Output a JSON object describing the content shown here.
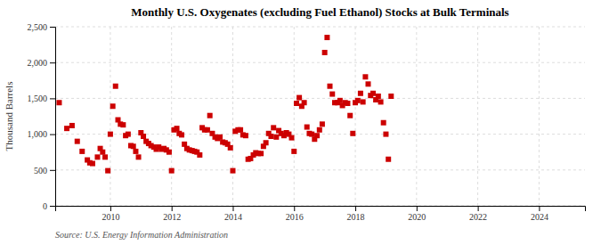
{
  "chart_data": {
    "type": "scatter",
    "title": "Monthly U.S. Oxygenates (excluding Fuel Ethanol) Stocks at Bulk Terminals",
    "ylabel": "Thousand Barrels",
    "source": "Source: U.S. Energy Information Administration",
    "color": "#cc0000",
    "marker": "square",
    "grid": true,
    "xlim": [
      2008.2,
      2025.5
    ],
    "ylim": [
      0,
      2500
    ],
    "xticks": [
      2010,
      2012,
      2014,
      2016,
      2018,
      2020,
      2022,
      2024
    ],
    "yticks": [
      0,
      500,
      {
        "value": 1000,
        "label": "1,000"
      },
      {
        "value": 1500,
        "label": "1,500"
      },
      {
        "value": 2000,
        "label": "2,000"
      },
      {
        "value": 2500,
        "label": "2,500"
      }
    ],
    "x": [
      2008.33,
      2008.58,
      2008.75,
      2008.92,
      2009.08,
      2009.25,
      2009.33,
      2009.42,
      2009.58,
      2009.67,
      2009.75,
      2009.83,
      2009.92,
      2010.0,
      2010.08,
      2010.17,
      2010.25,
      2010.33,
      2010.42,
      2010.5,
      2010.58,
      2010.67,
      2010.75,
      2010.83,
      2010.92,
      2011.0,
      2011.08,
      2011.17,
      2011.25,
      2011.33,
      2011.42,
      2011.5,
      2011.58,
      2011.67,
      2011.75,
      2011.83,
      2011.92,
      2012.0,
      2012.08,
      2012.17,
      2012.25,
      2012.33,
      2012.42,
      2012.5,
      2012.58,
      2012.67,
      2012.75,
      2012.83,
      2012.92,
      2013.0,
      2013.08,
      2013.17,
      2013.25,
      2013.33,
      2013.42,
      2013.5,
      2013.58,
      2013.67,
      2013.75,
      2013.83,
      2013.92,
      2014.0,
      2014.08,
      2014.17,
      2014.25,
      2014.33,
      2014.42,
      2014.5,
      2014.58,
      2014.67,
      2014.75,
      2014.83,
      2014.92,
      2015.0,
      2015.08,
      2015.17,
      2015.25,
      2015.33,
      2015.42,
      2015.5,
      2015.58,
      2015.67,
      2015.75,
      2015.83,
      2015.92,
      2016.0,
      2016.08,
      2016.17,
      2016.25,
      2016.33,
      2016.42,
      2016.5,
      2016.58,
      2016.67,
      2016.75,
      2016.83,
      2016.92,
      2017.0,
      2017.08,
      2017.17,
      2017.25,
      2017.33,
      2017.42,
      2017.5,
      2017.58,
      2017.67,
      2017.75,
      2017.83,
      2017.92,
      2018.0,
      2018.08,
      2018.17,
      2018.25,
      2018.33,
      2018.42,
      2018.5,
      2018.58,
      2018.67,
      2018.75,
      2018.83,
      2018.92,
      2019.0,
      2019.08,
      2019.17
    ],
    "values": [
      1440,
      1080,
      1120,
      900,
      760,
      640,
      600,
      590,
      680,
      800,
      750,
      680,
      490,
      1000,
      1390,
      1670,
      1200,
      1140,
      1130,
      980,
      1000,
      840,
      830,
      760,
      680,
      1020,
      970,
      900,
      870,
      840,
      820,
      790,
      820,
      790,
      800,
      780,
      750,
      490,
      1060,
      1080,
      1010,
      990,
      860,
      800,
      780,
      770,
      760,
      750,
      710,
      1090,
      1060,
      1060,
      1260,
      1010,
      960,
      940,
      960,
      890,
      880,
      860,
      810,
      490,
      1040,
      1060,
      1060,
      990,
      980,
      650,
      660,
      710,
      740,
      730,
      730,
      830,
      880,
      1010,
      970,
      1090,
      960,
      1050,
      1010,
      980,
      1020,
      1000,
      950,
      760,
      1430,
      1510,
      1390,
      1440,
      1100,
      1010,
      1000,
      930,
      980,
      1060,
      1140,
      2140,
      2350,
      1670,
      1560,
      1440,
      1440,
      1470,
      1400,
      1440,
      1430,
      1260,
      1010,
      1440,
      1470,
      1570,
      1450,
      1800,
      1700,
      1540,
      1570,
      1480,
      1530,
      1450,
      1160,
      1000,
      650,
      1530
    ]
  }
}
